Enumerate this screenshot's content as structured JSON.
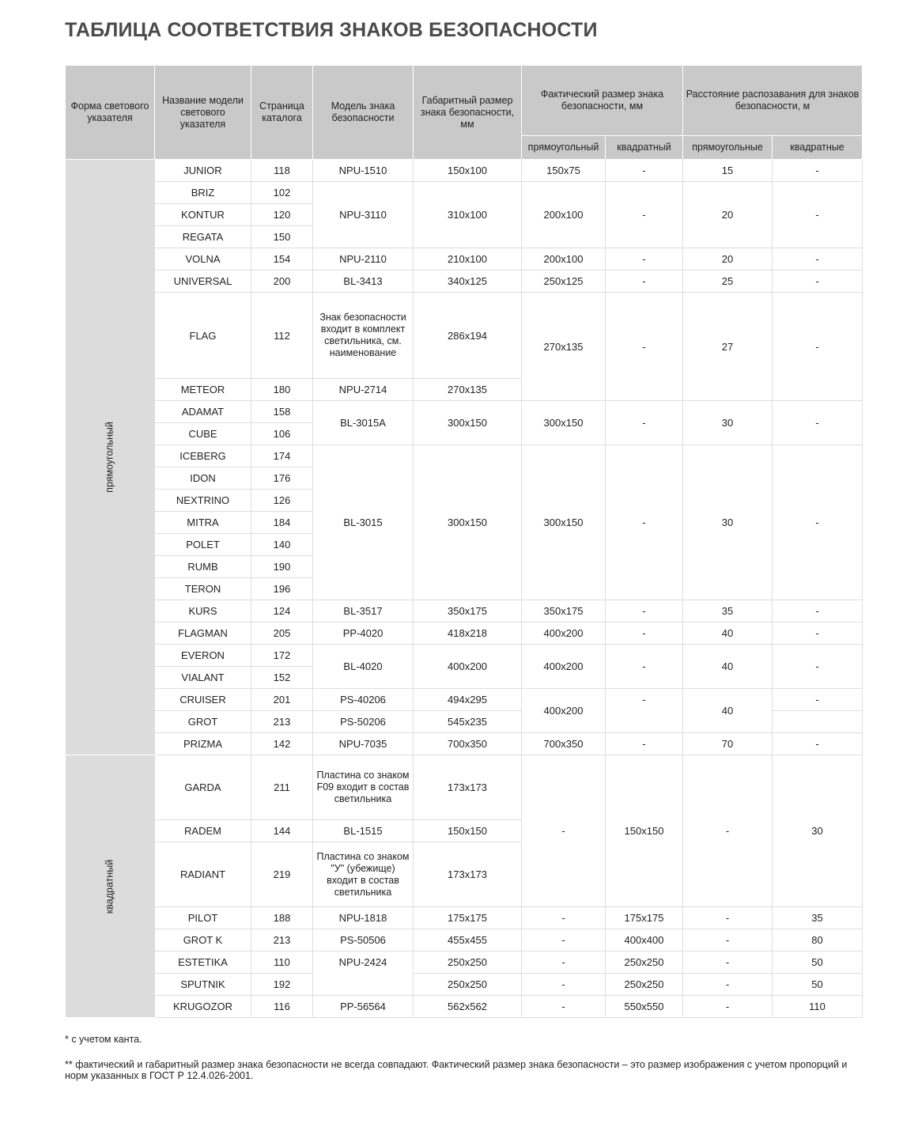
{
  "title": "ТАБЛИЦА СООТВЕТСТВИЯ ЗНАКОВ БЕЗОПАСНОСТИ",
  "header": {
    "shape": "Форма светового указателя",
    "model_name": "Название модели светового указателя",
    "page": "Страница каталога",
    "sign_model": "Модель знака безопасности",
    "overall_size": "Габаритный размер знака безопасности, мм",
    "actual_size": "Фактический размер знака безопасности, мм",
    "distance": "Расстояние распозавания для знаков безопасности, м",
    "actual_rect": "прямоугольный",
    "actual_square": "квадратный",
    "dist_rect": "прямоугольные",
    "dist_square": "квадратные"
  },
  "groups": [
    {
      "label": "прямоугольный",
      "rows": 24
    },
    {
      "label": "квадратный",
      "rows": 8
    }
  ],
  "rows": [
    {
      "cells": [
        {
          "t": "JUNIOR"
        },
        {
          "t": "118"
        },
        {
          "t": "NPU-1510"
        },
        {
          "t": "150x100"
        },
        {
          "t": "150x75"
        },
        {
          "t": "-"
        },
        {
          "t": "15"
        },
        {
          "t": "-"
        }
      ]
    },
    {
      "cells": [
        {
          "t": "BRIZ"
        },
        {
          "t": "102"
        },
        {
          "t": "NPU-3110",
          "rs": 3
        },
        {
          "t": "310x100",
          "rs": 3
        },
        {
          "t": "200x100",
          "rs": 3
        },
        {
          "t": "-",
          "rs": 3
        },
        {
          "t": "20",
          "rs": 3
        },
        {
          "t": "-",
          "rs": 3
        }
      ]
    },
    {
      "cells": [
        {
          "t": "KONTUR"
        },
        {
          "t": "120"
        }
      ]
    },
    {
      "cells": [
        {
          "t": "REGATA"
        },
        {
          "t": "150"
        }
      ]
    },
    {
      "cells": [
        {
          "t": "VOLNA"
        },
        {
          "t": "154"
        },
        {
          "t": "NPU-2110"
        },
        {
          "t": "210x100"
        },
        {
          "t": "200x100"
        },
        {
          "t": "-"
        },
        {
          "t": "20"
        },
        {
          "t": "-"
        }
      ]
    },
    {
      "cells": [
        {
          "t": "UNIVERSAL"
        },
        {
          "t": "200"
        },
        {
          "t": "BL-3413"
        },
        {
          "t": "340x125"
        },
        {
          "t": "250x125"
        },
        {
          "t": "-"
        },
        {
          "t": "25"
        },
        {
          "t": "-"
        }
      ]
    },
    {
      "cells": [
        {
          "t": "FLAG"
        },
        {
          "t": "112"
        },
        {
          "t": "Знак безопасности входит в комплект светильника, см. наименование"
        },
        {
          "t": "286x194"
        },
        {
          "t": "270x135",
          "rs": 2
        },
        {
          "t": "-",
          "rs": 2
        },
        {
          "t": "27",
          "rs": 2
        },
        {
          "t": "-",
          "rs": 2
        }
      ]
    },
    {
      "cells": [
        {
          "t": "METEOR"
        },
        {
          "t": "180"
        },
        {
          "t": "NPU-2714"
        },
        {
          "t": "270x135"
        }
      ]
    },
    {
      "cells": [
        {
          "t": "ADAMAT"
        },
        {
          "t": "158"
        },
        {
          "t": "BL-3015A",
          "rs": 2
        },
        {
          "t": "300x150",
          "rs": 2
        },
        {
          "t": "300x150",
          "rs": 2
        },
        {
          "t": "-",
          "rs": 2
        },
        {
          "t": "30",
          "rs": 2
        },
        {
          "t": "-",
          "rs": 2
        }
      ]
    },
    {
      "cells": [
        {
          "t": "CUBE"
        },
        {
          "t": "106"
        }
      ]
    },
    {
      "cells": [
        {
          "t": "ICEBERG"
        },
        {
          "t": "174"
        },
        {
          "t": "BL-3015",
          "rs": 7
        },
        {
          "t": "300x150",
          "rs": 7
        },
        {
          "t": "300x150",
          "rs": 7
        },
        {
          "t": "-",
          "rs": 7
        },
        {
          "t": "30",
          "rs": 7
        },
        {
          "t": "-",
          "rs": 7
        }
      ]
    },
    {
      "cells": [
        {
          "t": "IDON"
        },
        {
          "t": "176"
        }
      ]
    },
    {
      "cells": [
        {
          "t": "NEXTRINO"
        },
        {
          "t": "126"
        }
      ]
    },
    {
      "cells": [
        {
          "t": "MITRA"
        },
        {
          "t": "184"
        }
      ]
    },
    {
      "cells": [
        {
          "t": "POLET"
        },
        {
          "t": "140"
        }
      ]
    },
    {
      "cells": [
        {
          "t": "RUMB"
        },
        {
          "t": "190"
        }
      ]
    },
    {
      "cells": [
        {
          "t": "TERON"
        },
        {
          "t": "196"
        }
      ]
    },
    {
      "cells": [
        {
          "t": "KURS"
        },
        {
          "t": "124"
        },
        {
          "t": "BL-3517"
        },
        {
          "t": "350x175"
        },
        {
          "t": "350x175"
        },
        {
          "t": "-"
        },
        {
          "t": "35"
        },
        {
          "t": "-"
        }
      ]
    },
    {
      "cells": [
        {
          "t": "FLAGMAN"
        },
        {
          "t": "205"
        },
        {
          "t": "PP-4020"
        },
        {
          "t": "418x218"
        },
        {
          "t": "400x200"
        },
        {
          "t": "-"
        },
        {
          "t": "40"
        },
        {
          "t": "-"
        }
      ]
    },
    {
      "cells": [
        {
          "t": "EVERON"
        },
        {
          "t": "172"
        },
        {
          "t": "BL-4020",
          "rs": 2
        },
        {
          "t": "400x200",
          "rs": 2
        },
        {
          "t": "400x200",
          "rs": 2
        },
        {
          "t": "-",
          "rs": 2
        },
        {
          "t": "40",
          "rs": 2
        },
        {
          "t": "-",
          "rs": 2
        }
      ]
    },
    {
      "cells": [
        {
          "t": "VIALANT"
        },
        {
          "t": "152"
        }
      ]
    },
    {
      "cells": [
        {
          "t": "CRUISER"
        },
        {
          "t": "201"
        },
        {
          "t": "PS-40206"
        },
        {
          "t": "494x295"
        },
        {
          "t": "400x200",
          "rs": 2
        },
        {
          "t": "-",
          "rs": 2,
          "top": true
        },
        {
          "t": "40",
          "rs": 2
        },
        {
          "t": "-"
        }
      ]
    },
    {
      "cells": [
        {
          "t": "GROT"
        },
        {
          "t": "213"
        },
        {
          "t": "PS-50206"
        },
        {
          "t": "545x235"
        },
        {
          "t": ""
        }
      ]
    },
    {
      "cells": [
        {
          "t": "PRIZMA"
        },
        {
          "t": "142"
        },
        {
          "t": "NPU-7035"
        },
        {
          "t": "700x350"
        },
        {
          "t": "700x350"
        },
        {
          "t": "-"
        },
        {
          "t": "70"
        },
        {
          "t": "-"
        }
      ]
    },
    {
      "cells": [
        {
          "t": "GARDA"
        },
        {
          "t": "211"
        },
        {
          "t": "Пластина со знаком F09 входит в состав светильника"
        },
        {
          "t": "173x173"
        },
        {
          "t": "-",
          "rs": 3
        },
        {
          "t": "150x150",
          "rs": 3
        },
        {
          "t": "-",
          "rs": 3
        },
        {
          "t": "30",
          "rs": 3
        }
      ]
    },
    {
      "cells": [
        {
          "t": "RADEM"
        },
        {
          "t": "144"
        },
        {
          "t": "BL-1515"
        },
        {
          "t": "150x150"
        }
      ]
    },
    {
      "cells": [
        {
          "t": "RADIANT"
        },
        {
          "t": "219"
        },
        {
          "t": "Пластина со знаком \"У\" (убежище) входит в состав светильника"
        },
        {
          "t": "173x173"
        }
      ]
    },
    {
      "cells": [
        {
          "t": "PILOT"
        },
        {
          "t": "188"
        },
        {
          "t": "NPU-1818"
        },
        {
          "t": "175x175"
        },
        {
          "t": "-"
        },
        {
          "t": "175x175"
        },
        {
          "t": "-"
        },
        {
          "t": "35"
        }
      ]
    },
    {
      "cells": [
        {
          "t": "GROT K"
        },
        {
          "t": "213"
        },
        {
          "t": "PS-50506"
        },
        {
          "t": "455x455"
        },
        {
          "t": "-"
        },
        {
          "t": "400x400"
        },
        {
          "t": "-"
        },
        {
          "t": "80"
        }
      ]
    },
    {
      "cells": [
        {
          "t": "ESTETIKA"
        },
        {
          "t": "110"
        },
        {
          "t": "NPU-2424",
          "rs": 2,
          "top": true
        },
        {
          "t": "250x250"
        },
        {
          "t": "-"
        },
        {
          "t": "250x250"
        },
        {
          "t": "-"
        },
        {
          "t": "50"
        }
      ]
    },
    {
      "cells": [
        {
          "t": "SPUTNIK"
        },
        {
          "t": "192"
        },
        {
          "t": "250x250"
        },
        {
          "t": "-"
        },
        {
          "t": "250x250"
        },
        {
          "t": "-"
        },
        {
          "t": "50"
        }
      ]
    },
    {
      "cells": [
        {
          "t": "KRUGOZOR"
        },
        {
          "t": "116"
        },
        {
          "t": "PP-56564"
        },
        {
          "t": "562x562"
        },
        {
          "t": "-"
        },
        {
          "t": "550x550"
        },
        {
          "t": "-"
        },
        {
          "t": "110"
        }
      ]
    }
  ],
  "notes": {
    "note1": "* с учетом канта.",
    "note2": "** фактический и габаритный размер знака безопасности не всегда совпадают. Фактический размер знака безопасности – это размер изображения с учетом пропорций и норм указанных в ГОСТ Р 12.4.026-2001."
  }
}
